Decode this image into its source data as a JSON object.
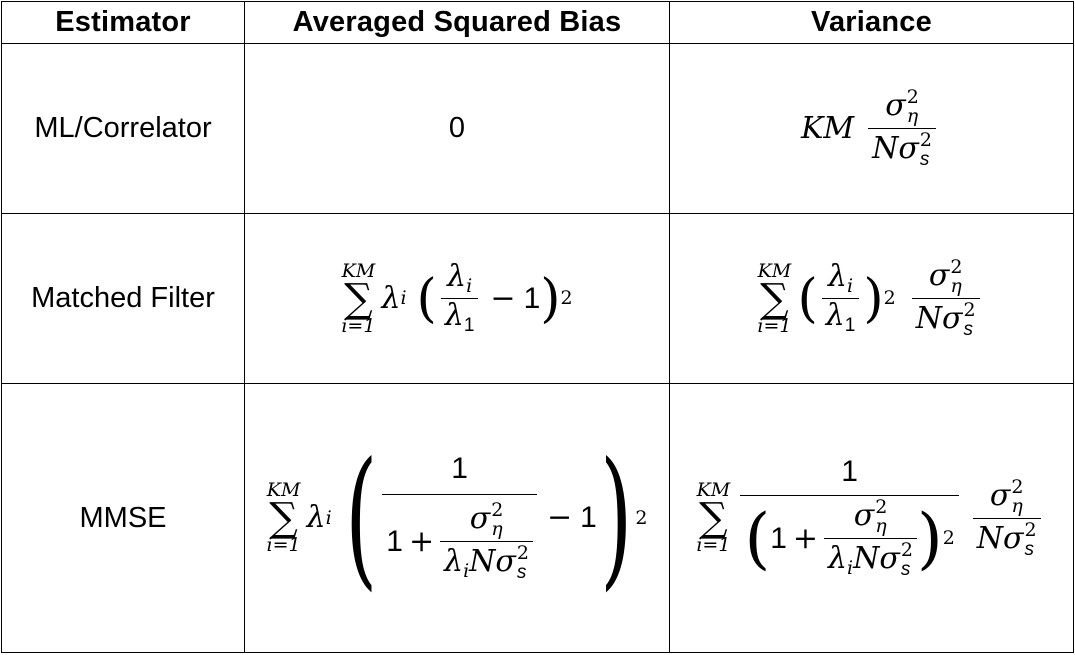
{
  "table": {
    "headers": [
      "Estimator",
      "Averaged Squared Bias",
      "Variance"
    ],
    "rows": [
      {
        "label": "ML/Correlator",
        "bias": "0",
        "variance": "KM σ_η^2 / (N σ_s^2)"
      },
      {
        "label": "Matched Filter",
        "bias": "Σ_{i=1}^{KM} λ_i (λ_i/λ_1 − 1)^2",
        "variance": "Σ_{i=1}^{KM} (λ_i/λ_1)^2 σ_η^2 / (N σ_s^2)"
      },
      {
        "label": "MMSE",
        "bias": "Σ_{i=1}^{KM} λ_i ( 1 / (1 + σ_η^2/(λ_i N σ_s^2)) − 1 )^2",
        "variance": "Σ_{i=1}^{KM} 1 / (1 + σ_η^2/(λ_i N σ_s^2))^2 · σ_η^2 / (N σ_s^2)"
      }
    ],
    "symbols": {
      "KM": "KM",
      "K": "K",
      "M": "M",
      "N": "N",
      "i_eq_1": "i=1",
      "sigma": "σ",
      "eta": "η",
      "s": "s",
      "lambda": "λ",
      "i": "i",
      "one": "1",
      "two": "2",
      "minus": "−",
      "plus": "+"
    }
  }
}
